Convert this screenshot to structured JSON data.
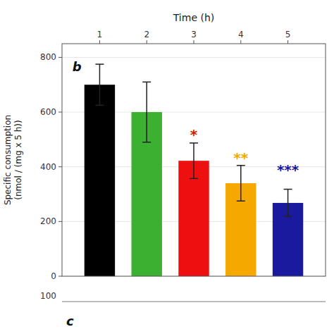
{
  "chart_data": {
    "type": "bar",
    "xlabel": "Time (h)",
    "ylabel": "Specific consumption\n(nmol / (mg x 5 h))",
    "x": [
      1,
      2,
      3,
      4,
      5
    ],
    "values": [
      700,
      600,
      422,
      340,
      268
    ],
    "errors": [
      75,
      110,
      65,
      65,
      50
    ],
    "colors": [
      "#000000",
      "#3cb030",
      "#ee1010",
      "#f5a800",
      "#1a1a9e"
    ],
    "xlim": [
      0.2,
      5.8
    ],
    "xticks": [
      1,
      2,
      3,
      4,
      5
    ],
    "ylim": [
      0,
      850
    ],
    "yticks": [
      0,
      200,
      400,
      600,
      800
    ],
    "annotations": [
      {
        "text": "*",
        "x": 3,
        "y": 500,
        "color": "#cc2200"
      },
      {
        "text": "**",
        "x": 4,
        "y": 415,
        "color": "#f5a800"
      },
      {
        "text": "***",
        "x": 5,
        "y": 370,
        "color": "#1a1a9e"
      },
      {
        "text": "b",
        "x": 0.42,
        "y": 790
      },
      {
        "text": "100"
      },
      {
        "text": "c"
      }
    ]
  }
}
